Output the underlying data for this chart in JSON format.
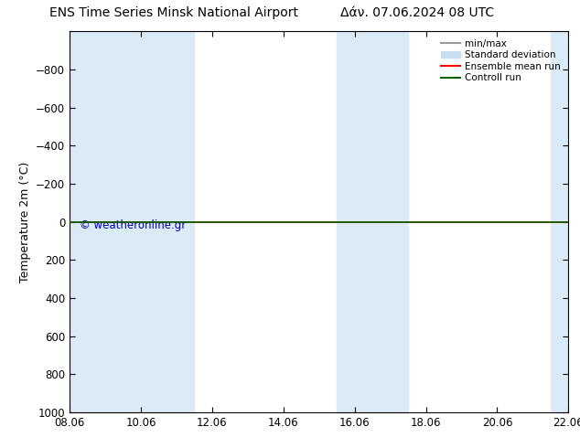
{
  "title_left": "ENS Time Series Minsk National Airport",
  "title_right": "Δάν. 07.06.2024 08 UTC",
  "ylabel": "Temperature 2m (°C)",
  "xlim_start": 0,
  "xlim_end": 14,
  "ylim_bottom": 1000,
  "ylim_top": -1000,
  "yticks": [
    -800,
    -600,
    -400,
    -200,
    0,
    200,
    400,
    600,
    800,
    1000
  ],
  "xtick_labels": [
    "08.06",
    "10.06",
    "12.06",
    "14.06",
    "16.06",
    "18.06",
    "20.06",
    "22.06"
  ],
  "xtick_positions": [
    0,
    2,
    4,
    6,
    8,
    10,
    12,
    14
  ],
  "shaded_bands": [
    {
      "xmin": 0.0,
      "xmax": 0.5
    },
    {
      "xmin": 0.5,
      "xmax": 1.5
    },
    {
      "xmin": 1.5,
      "xmax": 3.5
    },
    {
      "xmin": 7.5,
      "xmax": 8.5
    },
    {
      "xmin": 8.5,
      "xmax": 9.5
    },
    {
      "xmin": 13.5,
      "xmax": 14.0
    }
  ],
  "bg_color": "#ffffff",
  "band_color": "#daeaf7",
  "line_y": 0,
  "line_color_green": "#006400",
  "line_color_red": "#ff0000",
  "watermark": "© weatheronline.gr",
  "watermark_color": "#0000bb",
  "legend_items": [
    {
      "label": "min/max",
      "color": "#999999"
    },
    {
      "label": "Standard deviation",
      "color": "#c8dff0"
    },
    {
      "label": "Ensemble mean run",
      "color": "#ff0000"
    },
    {
      "label": "Controll run",
      "color": "#006400"
    }
  ]
}
